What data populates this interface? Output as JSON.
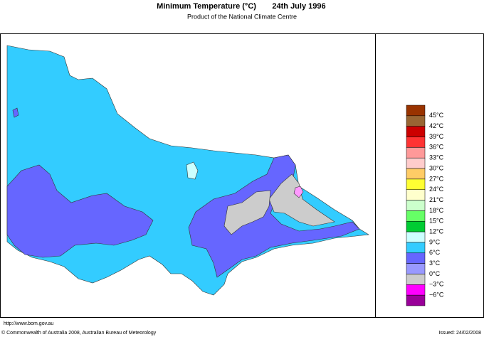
{
  "header": {
    "title": "Minimum Temperature (°C)",
    "date": "24th July 1996",
    "subtitle": "Product of the National Climate Centre"
  },
  "legend": {
    "colors": [
      "#993300",
      "#996633",
      "#cc0000",
      "#ff3333",
      "#ff9999",
      "#ffcccc",
      "#ffcc66",
      "#ffff33",
      "#ffffcc",
      "#ccffcc",
      "#66ff66",
      "#00cc33",
      "#ccffff",
      "#33ccff",
      "#6666ff",
      "#9999ff",
      "#cccccc",
      "#ff00ff",
      "#990099"
    ],
    "labels": [
      "45°C",
      "42°C",
      "39°C",
      "36°C",
      "33°C",
      "30°C",
      "27°C",
      "24°C",
      "21°C",
      "18°C",
      "15°C",
      "12°C",
      "9°C",
      "6°C",
      "3°C",
      "0°C",
      "−3°C",
      "−6°C"
    ]
  },
  "footer": {
    "url": "http://www.bom.gov.au",
    "copyright": "© Commonwealth of Australia 2008, Australian Bureau of Meteorology",
    "issued": "Issued: 24/02/2008"
  }
}
